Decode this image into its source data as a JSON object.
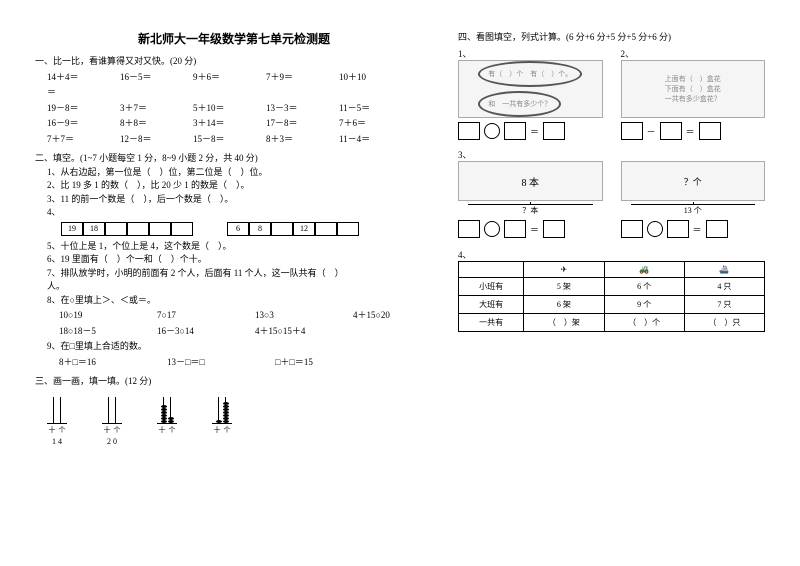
{
  "title": "新北师大一年级数学第七单元检测题",
  "s1": {
    "h": "一、比一比，看谁算得又对又快。(20 分)",
    "r": [
      [
        "14＋4＝",
        "16－5＝",
        "9＋6＝",
        "7＋9＝",
        "10＋10"
      ],
      [
        "＝",
        "",
        "",
        "",
        ""
      ],
      [
        "19－8＝",
        "3＋7＝",
        "5＋10＝",
        "13－3＝",
        "11－5＝"
      ],
      [
        "16－9＝",
        "8＋8＝",
        "3＋14＝",
        "17－8＝",
        "7＋6＝"
      ],
      [
        "7＋7＝",
        "12－8＝",
        "15－8＝",
        "8＋3＝",
        "11－4＝"
      ]
    ]
  },
  "s2": {
    "h": "二、填空。(1~7 小题每空 1 分，8~9 小题 2 分，共 40 分)",
    "items": [
      "1、从右边起，第一位是（　）位，第二位是（　）位。",
      "2、比 19 多 1 的数（　），比 20 少 1 的数是（　）。",
      "3、11 的前一个数是（　），后一个数是（　）。",
      "4、",
      "5、十位上是 1，个位上是 4，这个数是（　）。",
      "6、19 里面有（　）个一和（　）个十。",
      "7、排队放学时，小明的前面有 2 个人，后面有 11 个人，这一队共有（　）",
      "人。",
      "8、在○里填上＞、＜或＝。",
      "9、在□里填上合适的数。"
    ],
    "boxrow1": [
      "19",
      "18",
      "",
      "",
      "",
      ""
    ],
    "boxrow2": [
      "6",
      "8",
      "",
      "12",
      "",
      ""
    ],
    "cmp": [
      [
        "10○19",
        "7○17",
        "13○3",
        "4＋15○20"
      ],
      [
        "18○18－5",
        "16－3○14",
        "4＋15○15＋4"
      ]
    ],
    "fill": [
      "8＋□＝16",
      "13－□＝□",
      "□＋□＝15"
    ]
  },
  "s3": {
    "h": "三、画一画，填一填。(12 分)",
    "nums": [
      "1   4",
      "2   0",
      "",
      ""
    ],
    "beads": [
      [
        0,
        0
      ],
      [
        0,
        0
      ],
      [
        6,
        2
      ],
      [
        1,
        7
      ]
    ]
  },
  "s4": {
    "h": "四、看图填空，列式计算。(6 分+6 分+5 分+5 分+6 分)",
    "q1": {
      "t1": "有（　）个",
      "t2": "有（　）个。",
      "t3": "和　一共有多少个？"
    },
    "q2": {
      "t1": "上面有（　）盒花",
      "t2": "下面有（　）盒花",
      "t3": "一共有多少盒花？"
    },
    "q3": {
      "l": "8 本",
      "r": "？本",
      "q": "？本",
      "r2": "？个",
      "r3": "13 个"
    },
    "tbl": {
      "hd": [
        "",
        "✈",
        "🚜",
        "🚢"
      ],
      "r": [
        [
          "小班有",
          "5 架",
          "6 个",
          "4 只"
        ],
        [
          "大班有",
          "6 架",
          "9 个",
          "7 只"
        ],
        [
          "一共有",
          "（　）架",
          "（　）个",
          "（　）只"
        ]
      ]
    }
  }
}
